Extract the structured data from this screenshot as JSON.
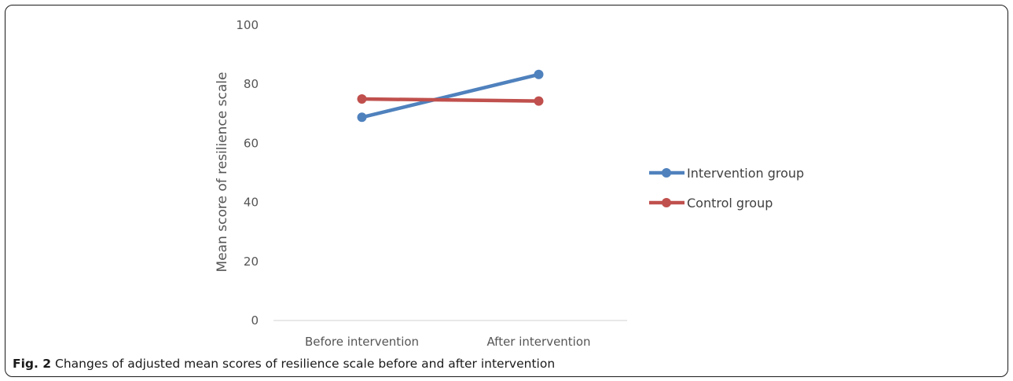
{
  "caption": {
    "figure_number": "Fig. 2",
    "text": "Changes of adjusted mean scores of resilience scale before and after intervention"
  },
  "chart_data": {
    "type": "line",
    "title": "",
    "xlabel": "",
    "ylabel": "Mean score of resilience scale",
    "categories": [
      "Before intervention",
      "After intervention"
    ],
    "ylim": [
      0,
      100
    ],
    "yticks": [
      0,
      20,
      40,
      60,
      80,
      100
    ],
    "grid": false,
    "legend_position": "right",
    "series": [
      {
        "name": "Intervention group",
        "values": [
          68.8,
          83.3
        ],
        "color": "#4f81bd"
      },
      {
        "name": "Control group",
        "values": [
          75.0,
          74.3
        ],
        "color": "#c0504d"
      }
    ]
  }
}
